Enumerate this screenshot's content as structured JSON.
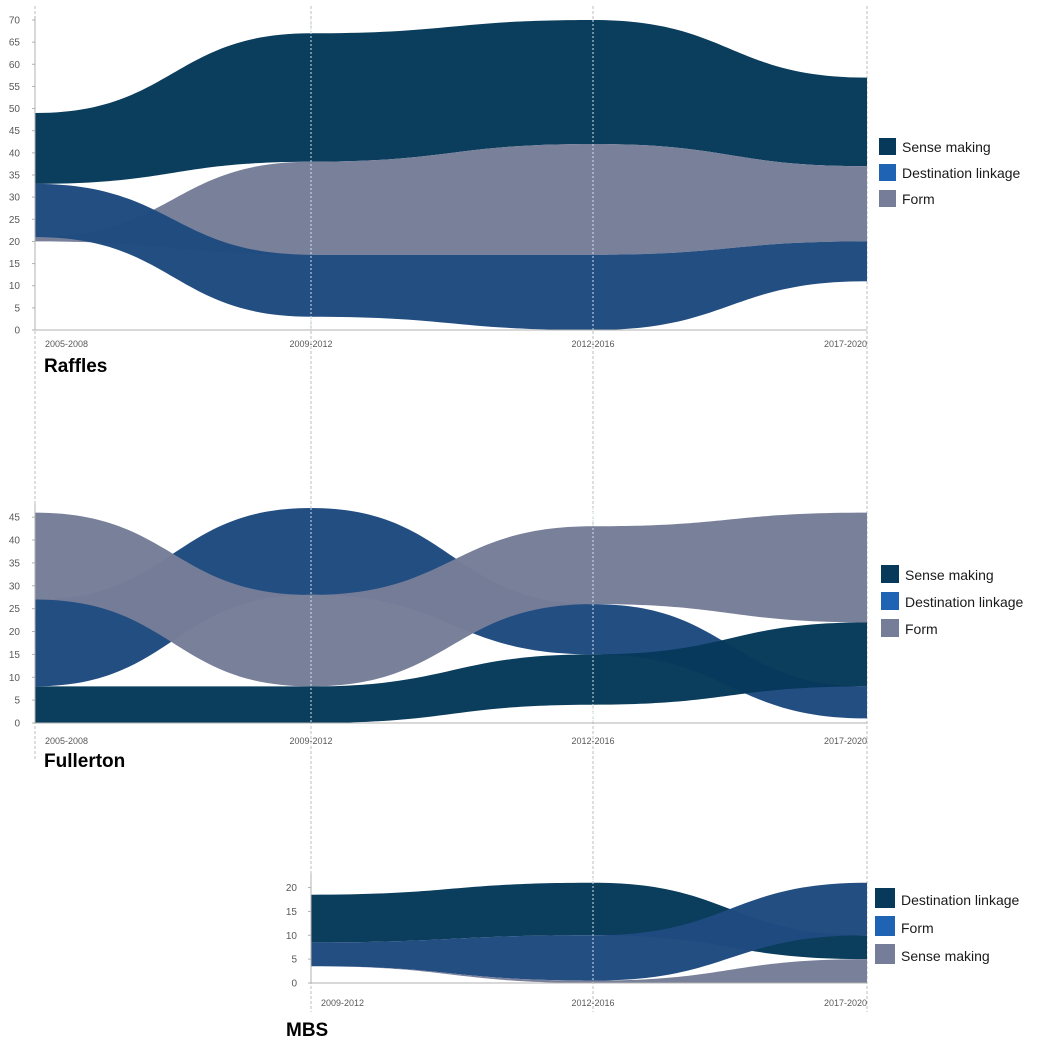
{
  "colors": {
    "dark_navy": "#06395A",
    "mid_blue": "#1F4A7F",
    "gray_lavender": "#767D98",
    "legend_blue": "#1F64B4",
    "axis": "#b0b0b0",
    "guide": "#bdbdbd",
    "guide_inner": "#cfe3ee"
  },
  "chart_data": [
    {
      "type": "area",
      "variant": "ribbon-streamgraph",
      "title": "Raffles",
      "categories": [
        "2005-2008",
        "2009-2012",
        "2012-2016",
        "2017-2020"
      ],
      "y_ticks": [
        0,
        5,
        10,
        15,
        20,
        25,
        30,
        35,
        40,
        45,
        50,
        55,
        60,
        65,
        70
      ],
      "ylim": [
        0,
        70
      ],
      "legend_position": "right",
      "legend": [
        {
          "label": "Sense making",
          "color": "#06395A"
        },
        {
          "label": "Destination linkage",
          "color": "#1F64B4"
        },
        {
          "label": "Form",
          "color": "#767D98"
        }
      ],
      "series": [
        {
          "name": "Sense making",
          "color": "#06395A",
          "lower": [
            33,
            38,
            42,
            37
          ],
          "upper": [
            49,
            67,
            70,
            57
          ]
        },
        {
          "name": "Form",
          "color": "#767D98",
          "lower": [
            20,
            17,
            17,
            20
          ],
          "upper": [
            21,
            38,
            42,
            37
          ]
        },
        {
          "name": "Destination linkage",
          "color": "#1F4A7F",
          "lower": [
            21,
            3,
            0,
            11
          ],
          "upper": [
            33,
            17,
            17,
            20
          ]
        }
      ]
    },
    {
      "type": "area",
      "variant": "ribbon-streamgraph",
      "title": "Fullerton",
      "categories": [
        "2005-2008",
        "2009-2012",
        "2012-2016",
        "2017-2020"
      ],
      "y_ticks": [
        0,
        5,
        10,
        15,
        20,
        25,
        30,
        35,
        40,
        45
      ],
      "ylim": [
        0,
        47
      ],
      "legend_position": "right",
      "legend": [
        {
          "label": "Sense making",
          "color": "#06395A"
        },
        {
          "label": "Destination linkage",
          "color": "#1F64B4"
        },
        {
          "label": "Form",
          "color": "#767D98"
        }
      ],
      "series": [
        {
          "name": "Destination linkage",
          "color": "#1F4A7F",
          "lower": [
            8,
            28,
            15,
            1
          ],
          "upper": [
            27,
            47,
            26,
            8
          ]
        },
        {
          "name": "Form",
          "color": "#767D98",
          "lower": [
            27,
            8,
            26,
            22
          ],
          "upper": [
            46,
            28,
            43,
            46
          ]
        },
        {
          "name": "Sense making",
          "color": "#06395A",
          "lower": [
            0,
            0,
            4,
            8
          ],
          "upper": [
            8,
            8,
            15,
            22
          ]
        }
      ]
    },
    {
      "type": "area",
      "variant": "ribbon-streamgraph",
      "title": "MBS",
      "categories": [
        "2009-2012",
        "2012-2016",
        "2017-2020"
      ],
      "y_ticks": [
        0,
        5,
        10,
        15,
        20
      ],
      "ylim": [
        0,
        22
      ],
      "legend_position": "right",
      "legend": [
        {
          "label": "Destination linkage",
          "color": "#06395A"
        },
        {
          "label": "Form",
          "color": "#1F64B4"
        },
        {
          "label": "Sense making",
          "color": "#767D98"
        }
      ],
      "series": [
        {
          "name": "Destination linkage",
          "color": "#06395A",
          "lower": [
            8.5,
            10,
            5
          ],
          "upper": [
            18.5,
            21,
            10
          ]
        },
        {
          "name": "Form",
          "color": "#1F4A7F",
          "lower": [
            3.5,
            0.5,
            10
          ],
          "upper": [
            8.5,
            10,
            21
          ]
        },
        {
          "name": "Sense making",
          "color": "#767D98",
          "lower": [
            3.5,
            0,
            0
          ],
          "upper": [
            3.5,
            0.5,
            5
          ]
        }
      ]
    }
  ]
}
